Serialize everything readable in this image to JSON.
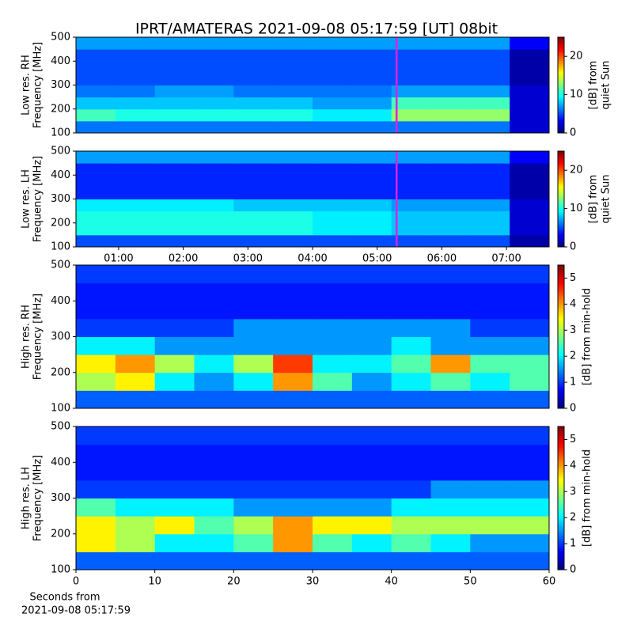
{
  "chart_data": [
    {
      "type": "heatmap",
      "title": "IPRT/AMATERAS 2021-09-08 05:17:59 [UT]   08bit",
      "ylabel": [
        "Low res. RH",
        "Frequency [MHz]"
      ],
      "colormap": "jet",
      "xbins": [
        0.34,
        0.95,
        1.56,
        2.17,
        2.78,
        3.39,
        4.0,
        4.61,
        5.22,
        5.83,
        6.44,
        7.05,
        7.66
      ],
      "ybins": [
        100,
        150,
        200,
        250,
        300,
        350,
        400,
        450,
        500
      ],
      "z": [
        [
          6,
          6,
          6,
          6,
          6,
          6,
          6,
          6,
          6,
          6,
          6,
          2
        ],
        [
          11,
          10,
          10,
          10,
          10,
          10,
          9,
          9,
          13,
          13,
          13,
          2
        ],
        [
          8,
          8,
          8,
          8,
          8,
          8,
          7,
          7,
          11,
          11,
          11,
          2
        ],
        [
          6,
          6,
          7,
          7,
          6,
          6,
          6,
          6,
          7,
          7,
          7,
          2
        ],
        [
          5,
          5,
          5,
          5,
          5,
          5,
          5,
          5,
          5,
          5,
          5,
          1
        ],
        [
          5,
          5,
          5,
          5,
          5,
          5,
          5,
          5,
          5,
          5,
          5,
          1
        ],
        [
          5,
          5,
          5,
          5,
          5,
          5,
          5,
          5,
          5,
          5,
          5,
          1
        ],
        [
          7,
          7,
          7,
          7,
          7,
          7,
          7,
          7,
          7,
          7,
          7,
          3
        ]
      ],
      "xlim": [
        0.34,
        7.66
      ],
      "ylim": [
        100,
        500
      ],
      "yticks": [
        100,
        200,
        300,
        400,
        500
      ],
      "marker_x": 5.3,
      "marker_color": "#e020e0",
      "clim": [
        0,
        25
      ],
      "cticks": [
        0,
        10,
        20
      ],
      "clabel": [
        "[dB] from",
        "quiet Sun"
      ]
    },
    {
      "type": "heatmap",
      "ylabel": [
        "Low res. LH",
        "Frequency [MHz]"
      ],
      "colormap": "jet",
      "xbins": [
        0.34,
        0.95,
        1.56,
        2.17,
        2.78,
        3.39,
        4.0,
        4.61,
        5.22,
        5.83,
        6.44,
        7.05,
        7.66
      ],
      "ybins": [
        100,
        150,
        200,
        250,
        300,
        350,
        400,
        450,
        500
      ],
      "z": [
        [
          5,
          5,
          5,
          5,
          5,
          5,
          5,
          5,
          5,
          5,
          5,
          1
        ],
        [
          10,
          10,
          10,
          10,
          10,
          10,
          9,
          9,
          8,
          8,
          8,
          2
        ],
        [
          10,
          10,
          10,
          10,
          10,
          10,
          9,
          9,
          8,
          8,
          8,
          2
        ],
        [
          9,
          9,
          9,
          9,
          8,
          8,
          8,
          8,
          7,
          7,
          7,
          2
        ],
        [
          4,
          4,
          4,
          4,
          4,
          4,
          4,
          4,
          4,
          4,
          4,
          1
        ],
        [
          4,
          4,
          4,
          4,
          4,
          4,
          4,
          4,
          4,
          4,
          4,
          1
        ],
        [
          4,
          4,
          4,
          4,
          4,
          4,
          4,
          4,
          4,
          4,
          4,
          1
        ],
        [
          7,
          7,
          7,
          7,
          7,
          7,
          7,
          7,
          7,
          7,
          7,
          3
        ]
      ],
      "xlim": [
        0.34,
        7.66
      ],
      "ylim": [
        100,
        500
      ],
      "yticks": [
        100,
        200,
        300,
        400,
        500
      ],
      "xticks": [
        {
          "value": 1,
          "label": "01:00"
        },
        {
          "value": 2,
          "label": "02:00"
        },
        {
          "value": 3,
          "label": "03:00"
        },
        {
          "value": 4,
          "label": "04:00"
        },
        {
          "value": 5,
          "label": "05:00"
        },
        {
          "value": 6,
          "label": "06:00"
        },
        {
          "value": 7,
          "label": "07:00"
        }
      ],
      "marker_x": 5.3,
      "marker_color": "#e020e0",
      "clim": [
        0,
        25
      ],
      "cticks": [
        0,
        10,
        20
      ],
      "clabel": [
        "[dB] from",
        "quiet Sun"
      ]
    },
    {
      "type": "heatmap",
      "ylabel": [
        "High res. RH",
        "Frequency [MHz]"
      ],
      "colormap": "jet",
      "xbins": [
        0,
        5,
        10,
        15,
        20,
        25,
        30,
        35,
        40,
        45,
        50,
        55,
        60
      ],
      "ybins": [
        100,
        150,
        200,
        250,
        300,
        350,
        400,
        450,
        500
      ],
      "z": [
        [
          1.2,
          1.2,
          1.2,
          1.2,
          1.2,
          1.2,
          1.2,
          1.2,
          1.2,
          1.2,
          1.2,
          1.2
        ],
        [
          3,
          3.5,
          2,
          1.5,
          2,
          4,
          2.5,
          1.5,
          2,
          2.5,
          2,
          2.5
        ],
        [
          3.5,
          4,
          3,
          2,
          3,
          4.5,
          2,
          2,
          2.5,
          4,
          2.5,
          2.5
        ],
        [
          2,
          2,
          1.5,
          1.5,
          1.5,
          1.5,
          1.5,
          1.5,
          2,
          1.5,
          1.5,
          1.5
        ],
        [
          1,
          1,
          1,
          1,
          1.5,
          1.5,
          1.5,
          1.5,
          1.5,
          1.5,
          1,
          1
        ],
        [
          0.8,
          0.8,
          0.8,
          0.8,
          0.8,
          0.8,
          0.8,
          0.8,
          0.8,
          0.8,
          0.8,
          0.8
        ],
        [
          0.8,
          0.8,
          0.8,
          0.8,
          0.8,
          0.8,
          0.8,
          0.8,
          0.8,
          0.8,
          0.8,
          0.8
        ],
        [
          1,
          1,
          1,
          1,
          1,
          1,
          1,
          1,
          1,
          1,
          1,
          1
        ]
      ],
      "xlim": [
        0,
        60
      ],
      "ylim": [
        100,
        500
      ],
      "yticks": [
        100,
        200,
        300,
        400,
        500
      ],
      "clim": [
        0,
        5.5
      ],
      "cticks": [
        0,
        1,
        2,
        3,
        4,
        5
      ],
      "clabel": [
        "[dB] from min-hold"
      ]
    },
    {
      "type": "heatmap",
      "ylabel": [
        "High res. LH",
        "Frequency [MHz]"
      ],
      "colormap": "jet",
      "xbins": [
        0,
        5,
        10,
        15,
        20,
        25,
        30,
        35,
        40,
        45,
        50,
        55,
        60
      ],
      "ybins": [
        100,
        150,
        200,
        250,
        300,
        350,
        400,
        450,
        500
      ],
      "z": [
        [
          1.2,
          1.2,
          1.2,
          1.2,
          1.2,
          1.2,
          1.2,
          1.2,
          1.2,
          1.2,
          1.2,
          1.2
        ],
        [
          3.5,
          3,
          2,
          2,
          2.5,
          4,
          2.5,
          2,
          2.5,
          2,
          1.5,
          1.5
        ],
        [
          3.5,
          3,
          3.5,
          2.5,
          3,
          4,
          3.5,
          3.5,
          3,
          3,
          3,
          3
        ],
        [
          2.5,
          2,
          2,
          2,
          1.5,
          1.5,
          1.5,
          1.5,
          2,
          2,
          2,
          2
        ],
        [
          1,
          1,
          1,
          1,
          1,
          1,
          1,
          1,
          1,
          1.5,
          1.5,
          1.5
        ],
        [
          0.8,
          0.8,
          0.8,
          0.8,
          0.8,
          0.8,
          0.8,
          0.8,
          0.8,
          0.8,
          0.8,
          0.8
        ],
        [
          0.8,
          0.8,
          0.8,
          0.8,
          0.8,
          0.8,
          0.8,
          0.8,
          0.8,
          0.8,
          0.8,
          0.8
        ],
        [
          1,
          1,
          1,
          1,
          1,
          1,
          1,
          1,
          1,
          1,
          1,
          1
        ]
      ],
      "xlim": [
        0,
        60
      ],
      "ylim": [
        100,
        500
      ],
      "yticks": [
        100,
        200,
        300,
        400,
        500
      ],
      "xticks": [
        0,
        10,
        20,
        30,
        40,
        50,
        60
      ],
      "xlabel": [
        "Seconds from",
        "2021-09-08 05:17:59"
      ],
      "clim": [
        0,
        5.5
      ],
      "cticks": [
        0,
        1,
        2,
        3,
        4,
        5
      ],
      "clabel": [
        "[dB] from min-hold"
      ]
    }
  ]
}
